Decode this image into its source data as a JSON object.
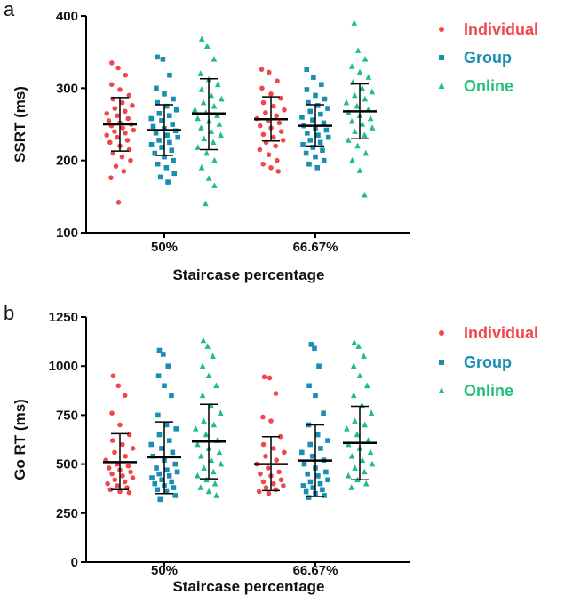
{
  "chart_data": [
    {
      "panel": "a",
      "type": "scatter",
      "ylabel": "SSRT (ms)",
      "xlabel": "Staircase percentage",
      "ylim": [
        100,
        400
      ],
      "yticks": [
        "100",
        "200",
        "300",
        "400"
      ],
      "categories": [
        "50%",
        "66.67%"
      ],
      "legend": [
        "Individual",
        "Group",
        "Online"
      ],
      "legend_placement": "right",
      "series": [
        {
          "name": "Individual",
          "color": "#f0474b",
          "marker": "circle",
          "summary": [
            {
              "mean": 250,
              "sd_low": 213,
              "sd_high": 287
            },
            {
              "mean": 257,
              "sd_low": 227,
              "sd_high": 288
            }
          ],
          "points": [
            [
              335,
              328,
              318,
              305,
              298,
              290,
              285,
              280,
              276,
              272,
              268,
              265,
              262,
              258,
              255,
              252,
              250,
              248,
              245,
              242,
              240,
              238,
              235,
              232,
              228,
              225,
              220,
              215,
              210,
              205,
              200,
              192,
              185,
              176,
              142
            ],
            [
              326,
              322,
              310,
              300,
              292,
              286,
              280,
              275,
              270,
              266,
              262,
              258,
              255,
              252,
              248,
              245,
              240,
              236,
              232,
              228,
              225,
              220,
              215,
              208,
              200,
              195,
              190,
              185
            ]
          ]
        },
        {
          "name": "Group",
          "color": "#1a8db3",
          "marker": "square",
          "summary": [
            {
              "mean": 242,
              "sd_low": 207,
              "sd_high": 277
            },
            {
              "mean": 248,
              "sd_low": 220,
              "sd_high": 277
            }
          ],
          "points": [
            [
              343,
              340,
              318,
              300,
              292,
              285,
              280,
              275,
              270,
              265,
              262,
              258,
              255,
              250,
              247,
              244,
              241,
              238,
              235,
              232,
              228,
              225,
              222,
              218,
              214,
              210,
              205,
              200,
              195,
              190,
              182,
              177,
              170
            ],
            [
              326,
              315,
              305,
              298,
              290,
              285,
              280,
              276,
              272,
              268,
              264,
              260,
              256,
              252,
              248,
              245,
              242,
              238,
              235,
              232,
              228,
              225,
              222,
              218,
              214,
              210,
              205,
              200,
              195,
              190
            ]
          ]
        },
        {
          "name": "Online",
          "color": "#1fbf7f",
          "marker": "triangle",
          "summary": [
            {
              "mean": 265,
              "sd_low": 215,
              "sd_high": 313
            },
            {
              "mean": 268,
              "sd_low": 230,
              "sd_high": 306
            }
          ],
          "points": [
            [
              368,
              358,
              340,
              320,
              312,
              305,
              298,
              290,
              285,
              280,
              275,
              270,
              266,
              262,
              258,
              254,
              250,
              245,
              240,
              235,
              230,
              225,
              218,
              210,
              200,
              190,
              175,
              165,
              140
            ],
            [
              390,
              352,
              340,
              330,
              322,
              315,
              308,
              300,
              295,
              290,
              285,
              280,
              275,
              270,
              266,
              262,
              258,
              254,
              250,
              245,
              240,
              235,
              228,
              220,
              210,
              200,
              186,
              152
            ]
          ]
        }
      ]
    },
    {
      "panel": "b",
      "type": "scatter",
      "ylabel": "Go  RT (ms)",
      "xlabel": "Staircase percentage",
      "ylim": [
        0,
        1250
      ],
      "yticks": [
        "0",
        "250",
        "500",
        "750",
        "1000",
        "1250"
      ],
      "categories": [
        "50%",
        "66.67%"
      ],
      "legend": [
        "Individual",
        "Group",
        "Online"
      ],
      "legend_placement": "right",
      "series": [
        {
          "name": "Individual",
          "color": "#f0474b",
          "marker": "circle",
          "summary": [
            {
              "mean": 510,
              "sd_low": 370,
              "sd_high": 655
            },
            {
              "mean": 500,
              "sd_low": 365,
              "sd_high": 640
            }
          ],
          "points": [
            [
              950,
              900,
              850,
              760,
              700,
              650,
              620,
              600,
              580,
              560,
              540,
              520,
              500,
              490,
              480,
              470,
              460,
              450,
              440,
              430,
              420,
              410,
              400,
              390,
              380,
              370,
              360,
              355
            ],
            [
              945,
              940,
              860,
              740,
              720,
              640,
              600,
              580,
              560,
              540,
              520,
              500,
              480,
              460,
              450,
              440,
              420,
              410,
              400,
              390,
              380,
              370,
              360,
              350
            ]
          ]
        },
        {
          "name": "Group",
          "color": "#1a8db3",
          "marker": "square",
          "summary": [
            {
              "mean": 535,
              "sd_low": 350,
              "sd_high": 715
            },
            {
              "mean": 518,
              "sd_low": 335,
              "sd_high": 700
            }
          ],
          "points": [
            [
              1080,
              1060,
              1000,
              950,
              900,
              850,
              750,
              700,
              680,
              650,
              620,
              600,
              580,
              560,
              540,
              520,
              500,
              480,
              470,
              460,
              450,
              440,
              430,
              420,
              410,
              400,
              390,
              380,
              370,
              360,
              340,
              320
            ],
            [
              1110,
              1090,
              1000,
              900,
              850,
              760,
              700,
              650,
              620,
              600,
              580,
              560,
              540,
              520,
              500,
              480,
              460,
              450,
              440,
              420,
              410,
              400,
              390,
              380,
              370,
              360,
              350,
              340,
              330
            ]
          ]
        },
        {
          "name": "Online",
          "color": "#1fbf7f",
          "marker": "triangle",
          "summary": [
            {
              "mean": 615,
              "sd_low": 425,
              "sd_high": 805
            },
            {
              "mean": 608,
              "sd_low": 420,
              "sd_high": 795
            }
          ],
          "points": [
            [
              1130,
              1100,
              1050,
              1000,
              950,
              900,
              850,
              800,
              760,
              720,
              700,
              680,
              650,
              620,
              600,
              580,
              560,
              540,
              520,
              500,
              480,
              460,
              440,
              420,
              400,
              380,
              360,
              340
            ],
            [
              1120,
              1100,
              1050,
              1000,
              950,
              900,
              850,
              800,
              760,
              720,
              700,
              680,
              650,
              620,
              600,
              580,
              560,
              540,
              520,
              500,
              480,
              460,
              440,
              420,
              400,
              380
            ]
          ]
        }
      ]
    }
  ]
}
